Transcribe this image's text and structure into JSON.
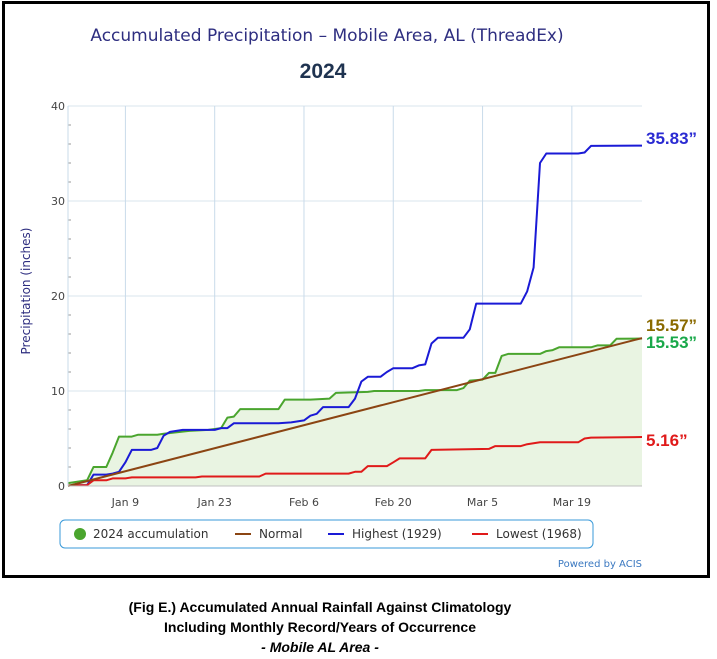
{
  "chart_data": {
    "type": "line",
    "title": "Accumulated Precipitation – Mobile Area, AL (ThreadEx)",
    "subtitle": "2024",
    "ylabel": "Precipitation (inches)",
    "xlabel": "",
    "ylim": [
      0,
      40
    ],
    "yticks": [
      0,
      10,
      20,
      30,
      40
    ],
    "xlim": [
      0,
      90
    ],
    "xticks": [
      {
        "day": 9,
        "label": "Jan 9"
      },
      {
        "day": 23,
        "label": "Jan 23"
      },
      {
        "day": 37,
        "label": "Feb 6"
      },
      {
        "day": 51,
        "label": "Feb 20"
      },
      {
        "day": 65,
        "label": "Mar 5"
      },
      {
        "day": 79,
        "label": "Mar 19"
      }
    ],
    "grid": true,
    "legend_position": "bottom",
    "series": [
      {
        "name": "2024 accumulation",
        "color": "#4aa52e",
        "fill": "#e9f4e2",
        "points": [
          [
            0,
            0.3
          ],
          [
            3,
            0.6
          ],
          [
            4,
            2
          ],
          [
            6,
            2
          ],
          [
            7,
            3.5
          ],
          [
            8,
            5.2
          ],
          [
            10,
            5.2
          ],
          [
            11,
            5.4
          ],
          [
            14,
            5.4
          ],
          [
            15,
            5.5
          ],
          [
            19,
            5.8
          ],
          [
            22,
            5.9
          ],
          [
            24,
            6.1
          ],
          [
            25,
            7.2
          ],
          [
            26,
            7.3
          ],
          [
            27,
            8.1
          ],
          [
            33,
            8.1
          ],
          [
            34,
            9.1
          ],
          [
            38,
            9.1
          ],
          [
            41,
            9.2
          ],
          [
            42,
            9.8
          ],
          [
            47,
            9.9
          ],
          [
            48,
            10.0
          ],
          [
            55,
            10.0
          ],
          [
            56,
            10.1
          ],
          [
            61,
            10.1
          ],
          [
            62,
            10.3
          ],
          [
            63,
            11.1
          ],
          [
            65,
            11.2
          ],
          [
            66,
            11.9
          ],
          [
            67,
            11.9
          ],
          [
            68,
            13.7
          ],
          [
            69,
            13.9
          ],
          [
            74,
            13.9
          ],
          [
            75,
            14.2
          ],
          [
            76,
            14.3
          ],
          [
            77,
            14.6
          ],
          [
            82,
            14.6
          ],
          [
            83,
            14.8
          ],
          [
            85,
            14.8
          ],
          [
            86,
            15.5
          ],
          [
            90,
            15.53
          ]
        ]
      },
      {
        "name": "Normal",
        "color": "#8b4513",
        "points": [
          [
            0,
            0
          ],
          [
            90,
            15.57
          ]
        ]
      },
      {
        "name": "Highest (1929)",
        "color": "#1a1ad6",
        "points": [
          [
            0,
            0.05
          ],
          [
            3,
            0.1
          ],
          [
            4,
            1.2
          ],
          [
            6,
            1.2
          ],
          [
            7,
            1.3
          ],
          [
            8,
            1.5
          ],
          [
            9,
            2.5
          ],
          [
            10,
            3.8
          ],
          [
            13,
            3.8
          ],
          [
            14,
            4.0
          ],
          [
            15,
            5.3
          ],
          [
            16,
            5.7
          ],
          [
            18,
            5.9
          ],
          [
            23,
            5.9
          ],
          [
            24,
            6.1
          ],
          [
            25,
            6.1
          ],
          [
            26,
            6.6
          ],
          [
            33,
            6.6
          ],
          [
            35,
            6.7
          ],
          [
            37,
            6.9
          ],
          [
            38,
            7.4
          ],
          [
            39,
            7.6
          ],
          [
            40,
            8.3
          ],
          [
            44,
            8.3
          ],
          [
            45,
            9.2
          ],
          [
            46,
            11.0
          ],
          [
            47,
            11.5
          ],
          [
            49,
            11.5
          ],
          [
            50,
            12.0
          ],
          [
            51,
            12.4
          ],
          [
            54,
            12.4
          ],
          [
            55,
            12.7
          ],
          [
            56,
            12.8
          ],
          [
            57,
            15.0
          ],
          [
            58,
            15.6
          ],
          [
            62,
            15.6
          ],
          [
            63,
            16.5
          ],
          [
            64,
            19.2
          ],
          [
            71,
            19.2
          ],
          [
            72,
            20.5
          ],
          [
            73,
            23.0
          ],
          [
            74,
            34.0
          ],
          [
            75,
            35.0
          ],
          [
            80,
            35.0
          ],
          [
            81,
            35.1
          ],
          [
            82,
            35.8
          ],
          [
            90,
            35.83
          ]
        ]
      },
      {
        "name": "Lowest (1968)",
        "color": "#e01a1a",
        "points": [
          [
            0,
            0.05
          ],
          [
            3,
            0.1
          ],
          [
            4,
            0.6
          ],
          [
            6,
            0.6
          ],
          [
            7,
            0.8
          ],
          [
            9,
            0.8
          ],
          [
            10,
            0.9
          ],
          [
            17,
            0.9
          ],
          [
            20,
            0.9
          ],
          [
            21,
            1.0
          ],
          [
            30,
            1.0
          ],
          [
            31,
            1.3
          ],
          [
            44,
            1.3
          ],
          [
            45,
            1.5
          ],
          [
            46,
            1.5
          ],
          [
            47,
            2.1
          ],
          [
            50,
            2.1
          ],
          [
            51,
            2.5
          ],
          [
            52,
            2.9
          ],
          [
            56,
            2.9
          ],
          [
            57,
            3.8
          ],
          [
            66,
            3.9
          ],
          [
            67,
            4.2
          ],
          [
            71,
            4.2
          ],
          [
            72,
            4.4
          ],
          [
            73,
            4.5
          ],
          [
            74,
            4.6
          ],
          [
            80,
            4.6
          ],
          [
            81,
            5.0
          ],
          [
            82,
            5.1
          ],
          [
            90,
            5.16
          ]
        ]
      }
    ],
    "end_labels": [
      {
        "series": "Highest (1929)",
        "text": "35.83”",
        "color": "#2a2ad2"
      },
      {
        "series": "Normal",
        "text": "15.57”",
        "color": "#8a6a00"
      },
      {
        "series": "2024 accumulation",
        "text": "15.53”",
        "color": "#1aa84a"
      },
      {
        "series": "Lowest (1968)",
        "text": "5.16”",
        "color": "#e01a1a"
      }
    ],
    "credit": "Powered by ACIS"
  },
  "caption": {
    "line1": "(Fig E.) Accumulated Annual Rainfall Against  Climatology",
    "line2": "Including Monthly Record/Years of Occurrence",
    "line3": "- Mobile AL Area -"
  }
}
